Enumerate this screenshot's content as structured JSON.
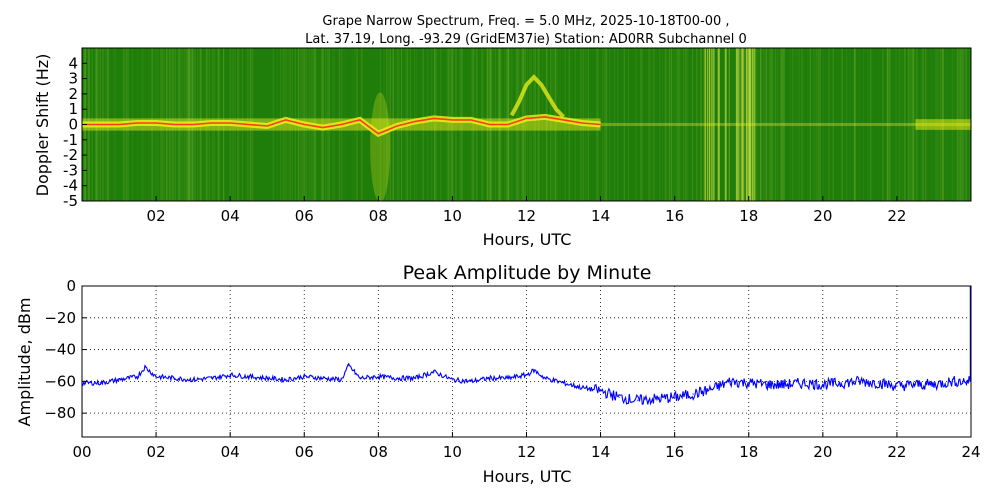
{
  "spectrum": {
    "title_line1": "Grape Narrow Spectrum, Freq. = 5.0 MHz, 2025-10-18T00-00 ,",
    "title_line2": "Lat.  37.19, Long. -93.29 (GridEM37ie) Station: AD0RR Subchannel 0",
    "xlabel": "Hours, UTC",
    "ylabel": "Doppler Shift (Hz)",
    "x_ticks": [
      "02",
      "04",
      "06",
      "08",
      "10",
      "12",
      "14",
      "16",
      "18",
      "20",
      "22"
    ],
    "y_ticks": [
      "4",
      "3",
      "2",
      "1",
      "0",
      "-1",
      "-2",
      "-3",
      "-4",
      "-5"
    ],
    "colors": {
      "background": "#1f7d0a",
      "signal": "#f2f21a",
      "peak": "#ff3b1a"
    }
  },
  "chart_data": [
    {
      "type": "heatmap",
      "title": "Grape Narrow Spectrum, Freq. = 5.0 MHz, 2025-10-18T00-00 , Lat.  37.19, Long. -93.29 (GridEM37ie) Station: AD0RR Subchannel 0",
      "xlabel": "Hours, UTC",
      "ylabel": "Doppler Shift (Hz)",
      "xlim": [
        0,
        24
      ],
      "ylim": [
        -5,
        5
      ],
      "doppler_trace": {
        "x": [
          0,
          0.5,
          1,
          1.5,
          2,
          2.5,
          3,
          3.5,
          4,
          4.5,
          5,
          5.5,
          6,
          6.5,
          7,
          7.5,
          8,
          8.5,
          9,
          9.5,
          10,
          10.5,
          11,
          11.5,
          12,
          12.5,
          13,
          13.5,
          14
        ],
        "y": [
          0,
          0,
          0,
          0.1,
          0.1,
          0,
          0,
          0.1,
          0.1,
          0,
          -0.1,
          0.3,
          0,
          -0.2,
          0,
          0.3,
          -0.6,
          -0.1,
          0.2,
          0.4,
          0.3,
          0.3,
          0,
          0,
          0.4,
          0.5,
          0.3,
          0.1,
          0
        ]
      },
      "secondary_trace": {
        "x": [
          11.6,
          11.8,
          12,
          12.2,
          12.4,
          12.6,
          12.8,
          13
        ],
        "y": [
          0.6,
          1.5,
          2.6,
          3.1,
          2.6,
          1.8,
          1.0,
          0.5
        ]
      }
    },
    {
      "type": "line",
      "title": "Peak Amplitude by Minute",
      "xlabel": "Hours, UTC",
      "ylabel": "Amplitude, dBm",
      "xlim": [
        0,
        24
      ],
      "ylim": [
        -95,
        0
      ],
      "grid": true,
      "x_ticks": [
        "00",
        "02",
        "04",
        "06",
        "08",
        "10",
        "12",
        "14",
        "16",
        "18",
        "20",
        "22",
        "24"
      ],
      "y_ticks": [
        "0",
        "−20",
        "−40",
        "−60",
        "−80"
      ],
      "y_tick_values": [
        0,
        -20,
        -40,
        -60,
        -80
      ],
      "x_tick_values": [
        0,
        2,
        4,
        6,
        8,
        10,
        12,
        14,
        16,
        18,
        20,
        22,
        24
      ],
      "series": [
        {
          "color": "#0000ff",
          "x": [
            0,
            0.5,
            1,
            1.5,
            1.7,
            2,
            2.5,
            3,
            3.5,
            4,
            4.5,
            5,
            5.5,
            6,
            6.5,
            7,
            7.2,
            7.5,
            8,
            8.5,
            9,
            9.5,
            10,
            10.5,
            11,
            11.5,
            12,
            12.2,
            12.5,
            13,
            13.5,
            14,
            14.5,
            15,
            15.5,
            16,
            16.5,
            17,
            17.5,
            18,
            18.5,
            19,
            19.5,
            20,
            20.5,
            21,
            21.5,
            22,
            22.5,
            23,
            23.5,
            23.95
          ],
          "y": [
            -61,
            -61,
            -59,
            -57,
            -51,
            -57,
            -58,
            -59,
            -58,
            -56,
            -57,
            -58,
            -59,
            -57,
            -58,
            -59,
            -50,
            -58,
            -57,
            -58,
            -58,
            -54,
            -59,
            -60,
            -58,
            -58,
            -56,
            -53,
            -58,
            -61,
            -64,
            -66,
            -70,
            -72,
            -71,
            -70,
            -68,
            -65,
            -60,
            -61,
            -62,
            -62,
            -61,
            -62,
            -61,
            -60,
            -61,
            -63,
            -62,
            -62,
            -60,
            -60
          ]
        }
      ]
    }
  ]
}
